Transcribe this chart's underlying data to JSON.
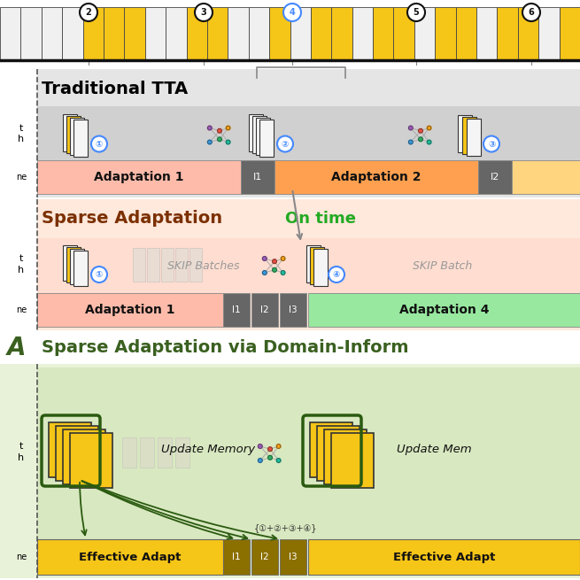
{
  "bg_color": "#ffffff",
  "yellow": "#F5C518",
  "white_cell": "#f0f0f0",
  "section1_title": "Traditional TTA",
  "section2_title": "Sparse Adaptation",
  "section2_subtitle": "On time",
  "section3_title": "Sparse Adaptation via Domain-Inform",
  "adapt1_color": "#FFBBAA",
  "adapt2_color": "#FFA050",
  "adapt4_color": "#98E8A0",
  "effectAdapt_color": "#F5C518",
  "gray_inf": "#666666",
  "sec1_bg": "#e5e5e5",
  "sec1_row_bg": "#d0d0d0",
  "sec2_bg": "#FFE8DC",
  "sec2_row_bg": "#FFDDD0",
  "sec3_bg": "#E8F2D8",
  "sec3_row_bg": "#D8E8C0",
  "dark_olive": "#8B7000",
  "dark_green_border": "#2a5a10",
  "title_green": "#3a6020",
  "title_brown": "#7B3000"
}
